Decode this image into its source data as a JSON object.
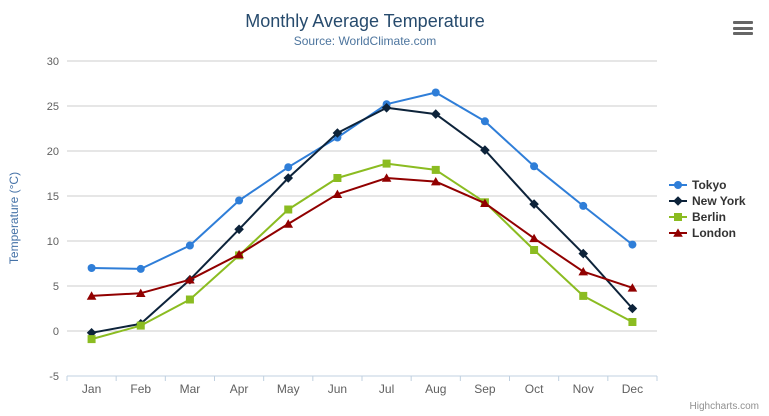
{
  "chart_data": {
    "type": "line",
    "title": "Monthly Average Temperature",
    "subtitle": "Source: WorldClimate.com",
    "xlabel": "",
    "ylabel": "Temperature (°C)",
    "categories": [
      "Jan",
      "Feb",
      "Mar",
      "Apr",
      "May",
      "Jun",
      "Jul",
      "Aug",
      "Sep",
      "Oct",
      "Nov",
      "Dec"
    ],
    "ylim": [
      -5,
      30
    ],
    "ytick_interval": 5,
    "grid": true,
    "legend_position": "right",
    "series": [
      {
        "name": "Tokyo",
        "color": "#2f7ed8",
        "marker": "circle",
        "values": [
          7.0,
          6.9,
          9.5,
          14.5,
          18.2,
          21.5,
          25.2,
          26.5,
          23.3,
          18.3,
          13.9,
          9.6
        ]
      },
      {
        "name": "New York",
        "color": "#0d233a",
        "marker": "diamond",
        "values": [
          -0.2,
          0.8,
          5.7,
          11.3,
          17.0,
          22.0,
          24.8,
          24.1,
          20.1,
          14.1,
          8.6,
          2.5
        ]
      },
      {
        "name": "Berlin",
        "color": "#8bbc21",
        "marker": "square",
        "values": [
          -0.9,
          0.6,
          3.5,
          8.4,
          13.5,
          17.0,
          18.6,
          17.9,
          14.3,
          9.0,
          3.9,
          1.0
        ]
      },
      {
        "name": "London",
        "color": "#910000",
        "marker": "triangle",
        "values": [
          3.9,
          4.2,
          5.7,
          8.5,
          11.9,
          15.2,
          17.0,
          16.6,
          14.2,
          10.3,
          6.6,
          4.8
        ]
      }
    ]
  },
  "credits": {
    "label": "Highcharts.com"
  },
  "icons": {
    "export_menu": "hamburger-icon"
  },
  "colors": {
    "background": "#ffffff",
    "title_text": "#274b6d",
    "subtitle_text": "#4d759e",
    "axis_title_text": "#4572a7",
    "axis_label_text": "#606060",
    "gridline": "#cccccc",
    "axis_line": "#c0d0e0",
    "legend_text": "#333333",
    "credits_text": "#909090",
    "menu_icon": "#666666"
  }
}
